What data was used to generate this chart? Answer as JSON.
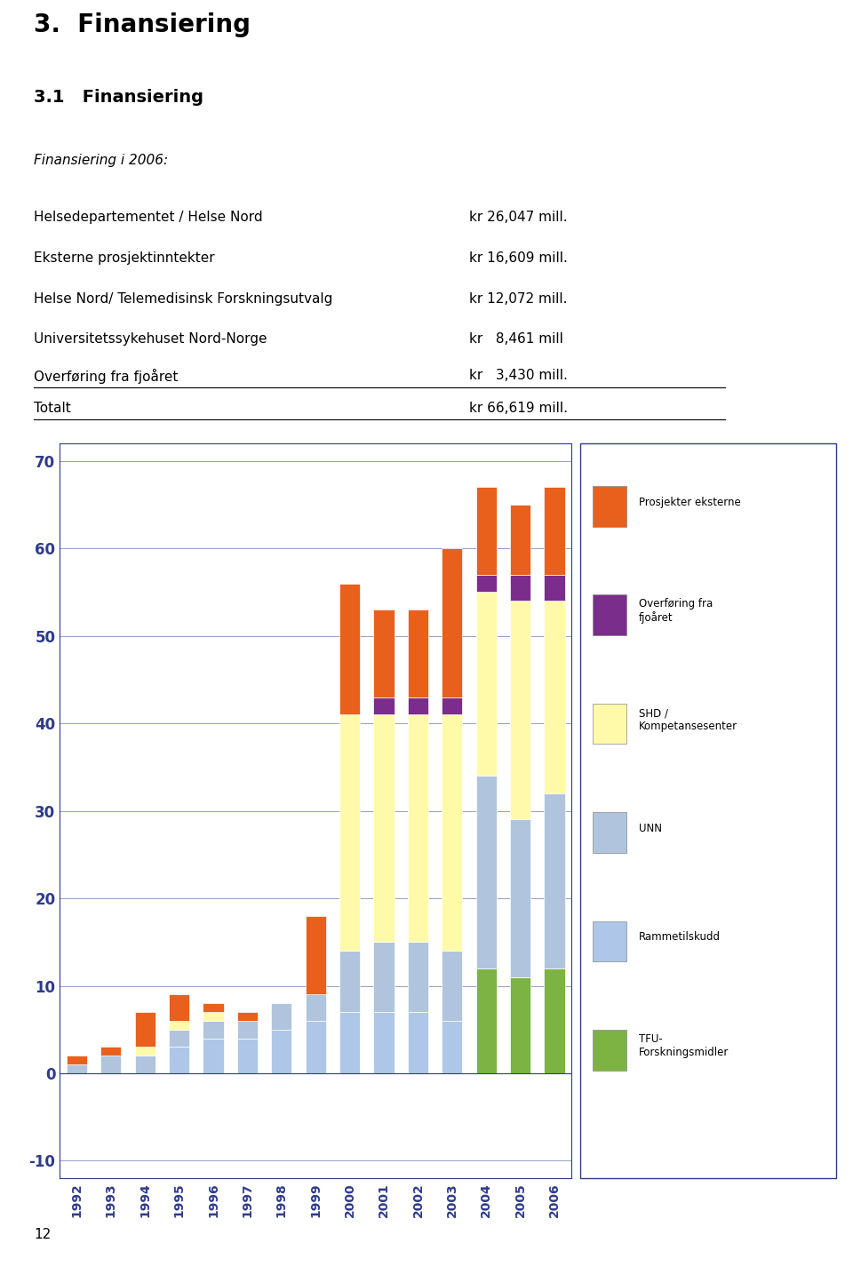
{
  "title_main": "3.  Finansiering",
  "subtitle": "3.1   Finansiering",
  "intro_italic": "Finansiering i 2006:",
  "table_rows": [
    {
      "label": "Helsedepartementet / Helse Nord",
      "value": "kr 26,047 mill.",
      "underline": false
    },
    {
      "label": "Eksterne prosjektinntekter",
      "value": "kr 16,609 mill.",
      "underline": false
    },
    {
      "label": "Helse Nord/ Telemedisinsk Forskningsutvalg",
      "value": "kr 12,072 mill.",
      "underline": false
    },
    {
      "label": "Universitetssykehuset Nord-Norge",
      "value": "kr   8,461 mill",
      "underline": false
    },
    {
      "label": "Overføring fra fjoåret",
      "value": "kr   3,430 mill.",
      "underline": true
    },
    {
      "label": "Totalt",
      "value": "kr 66,619 mill.",
      "underline": true
    }
  ],
  "years": [
    1992,
    1993,
    1994,
    1995,
    1996,
    1997,
    1998,
    1999,
    2000,
    2001,
    2002,
    2003,
    2004,
    2005,
    2006
  ],
  "series": {
    "TFU_Forskningsmidler": {
      "color": "#7CB342",
      "label": "TFU-\nForskningsmidler",
      "values": [
        0,
        0,
        0,
        0,
        0,
        0,
        0,
        0,
        0,
        0,
        0,
        0,
        12,
        11,
        12
      ]
    },
    "Rammetilskudd": {
      "color": "#AEC6E8",
      "label": "Rammetilskudd",
      "values": [
        0,
        0,
        0,
        3,
        4,
        4,
        5,
        6,
        7,
        7,
        7,
        6,
        0,
        0,
        0
      ]
    },
    "UNN": {
      "color": "#B0C4DE",
      "label": "UNN",
      "values": [
        1,
        2,
        2,
        2,
        2,
        2,
        3,
        3,
        7,
        8,
        8,
        8,
        22,
        18,
        20
      ]
    },
    "SHD_Kompetansesenter": {
      "color": "#FFFAAA",
      "label": "SHD /\nKompetansesenter",
      "values": [
        0,
        0,
        1,
        1,
        1,
        0,
        0,
        0,
        27,
        26,
        26,
        27,
        21,
        25,
        22
      ]
    },
    "Overforing": {
      "color": "#7B2D8B",
      "label": "Overføring fra\nfjoåret",
      "values": [
        0,
        0,
        0,
        0,
        0,
        0,
        0,
        0,
        0,
        2,
        2,
        2,
        2,
        3,
        3
      ]
    },
    "Prosjekter_eksterne": {
      "color": "#E8601C",
      "label": "Prosjekter eksterne",
      "values": [
        1,
        1,
        4,
        3,
        1,
        1,
        0,
        9,
        15,
        10,
        10,
        17,
        10,
        8,
        10
      ]
    }
  },
  "ylim": [
    -12,
    72
  ],
  "yticks": [
    -10,
    0,
    10,
    20,
    30,
    40,
    50,
    60,
    70
  ],
  "axis_color": "#2E3B8B",
  "grid_color": "#2E3B8B",
  "page_num": "12"
}
